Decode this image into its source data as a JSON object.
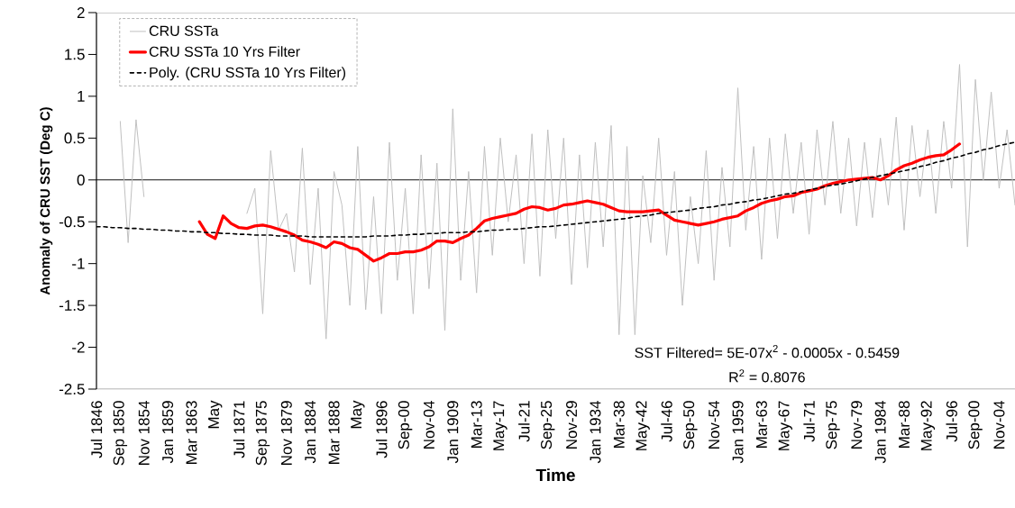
{
  "chart_data": {
    "type": "line",
    "xlabel": "Time",
    "ylabel": "Anomaly of CRU SST (Deg C)",
    "categories": [
      "Jul 1846",
      null,
      null,
      "Sep 1850",
      null,
      null,
      "Nov 1854",
      null,
      null,
      "Jan 1859",
      null,
      null,
      "Mar 1863",
      null,
      null,
      "May",
      null,
      null,
      "Jul 1871",
      null,
      null,
      "Sep 1875",
      null,
      null,
      "Nov 1879",
      null,
      null,
      "Jan 1884",
      null,
      null,
      "Mar 1888",
      null,
      null,
      "May",
      null,
      null,
      "Jul 1896",
      null,
      null,
      "Sep-00",
      null,
      null,
      "Nov-04",
      null,
      null,
      "Jan 1909",
      null,
      null,
      "Mar-13",
      null,
      null,
      "May-17",
      null,
      null,
      "Jul-21",
      null,
      null,
      "Sep-25",
      null,
      null,
      "Nov-29",
      null,
      null,
      "Jan 1934",
      null,
      null,
      "Mar-38",
      null,
      null,
      "May-42",
      null,
      null,
      "Jul-46",
      null,
      null,
      "Sep-50",
      null,
      null,
      "Nov-54",
      null,
      null,
      "Jan 1959",
      null,
      null,
      "Mar-63",
      null,
      null,
      "May-67",
      null,
      null,
      "Jul-71",
      null,
      null,
      "Sep-75",
      null,
      null,
      "Nov-79",
      null,
      null,
      "Jan 1984",
      null,
      null,
      "Mar-88",
      null,
      null,
      "May-92",
      null,
      null,
      "Jul-96",
      null,
      null,
      "Sep-00",
      null,
      null,
      "Nov-04",
      null,
      null
    ],
    "series": [
      {
        "name": "CRU SSTa",
        "color": "#c0c0c0",
        "line_style": "solid",
        "values": [
          null,
          null,
          null,
          0.7,
          -0.75,
          0.72,
          -0.2,
          null,
          null,
          null,
          null,
          null,
          null,
          null,
          null,
          null,
          null,
          null,
          null,
          -0.4,
          -0.1,
          -1.6,
          0.35,
          -0.6,
          -0.4,
          -1.1,
          0.38,
          -1.25,
          -0.1,
          -1.9,
          0.1,
          -0.3,
          -1.5,
          0.4,
          -1.55,
          -0.2,
          -1.6,
          0.45,
          -1.2,
          -0.1,
          -1.6,
          0.3,
          -1.3,
          0.2,
          -1.8,
          0.85,
          -1.2,
          0.1,
          -1.35,
          0.4,
          -0.9,
          0.5,
          -0.5,
          0.3,
          -1.0,
          0.55,
          -1.15,
          0.6,
          -0.7,
          0.5,
          -1.25,
          0.3,
          -1.05,
          0.45,
          -0.8,
          0.65,
          -1.85,
          0.4,
          -1.85,
          0.05,
          -0.75,
          0.5,
          -0.9,
          0.1,
          -1.5,
          -0.2,
          -1.0,
          0.35,
          -1.2,
          0.15,
          -0.8,
          1.1,
          -0.6,
          0.4,
          -0.95,
          0.5,
          -0.7,
          0.55,
          -0.4,
          0.45,
          -0.65,
          0.6,
          -0.3,
          0.7,
          -0.4,
          0.5,
          -0.55,
          0.45,
          -0.45,
          0.5,
          -0.3,
          0.75,
          -0.6,
          0.65,
          -0.2,
          0.6,
          -0.4,
          0.7,
          -0.1,
          1.38,
          -0.8,
          1.2,
          0.0,
          1.05,
          -0.1,
          0.6,
          -0.3
        ]
      },
      {
        "name": "CRU SSTa 10 Yrs Filter",
        "color": "#ff0000",
        "line_style": "solid",
        "values": [
          null,
          null,
          null,
          null,
          null,
          null,
          null,
          null,
          null,
          null,
          null,
          null,
          null,
          -0.5,
          -0.65,
          -0.7,
          -0.43,
          -0.52,
          -0.57,
          -0.58,
          -0.55,
          -0.54,
          -0.56,
          -0.59,
          -0.62,
          -0.66,
          -0.72,
          -0.74,
          -0.77,
          -0.81,
          -0.74,
          -0.76,
          -0.81,
          -0.83,
          -0.9,
          -0.97,
          -0.93,
          -0.88,
          -0.88,
          -0.86,
          -0.86,
          -0.84,
          -0.8,
          -0.73,
          -0.73,
          -0.75,
          -0.7,
          -0.66,
          -0.58,
          -0.49,
          -0.46,
          -0.44,
          -0.42,
          -0.4,
          -0.35,
          -0.32,
          -0.33,
          -0.36,
          -0.34,
          -0.3,
          -0.29,
          -0.27,
          -0.25,
          -0.27,
          -0.29,
          -0.33,
          -0.37,
          -0.38,
          -0.38,
          -0.38,
          -0.37,
          -0.36,
          -0.42,
          -0.48,
          -0.5,
          -0.52,
          -0.54,
          -0.52,
          -0.5,
          -0.47,
          -0.45,
          -0.43,
          -0.37,
          -0.33,
          -0.28,
          -0.25,
          -0.23,
          -0.2,
          -0.19,
          -0.15,
          -0.13,
          -0.11,
          -0.07,
          -0.04,
          -0.02,
          0.0,
          0.01,
          0.02,
          0.03,
          0.0,
          0.05,
          0.12,
          0.17,
          0.2,
          0.24,
          0.27,
          0.29,
          0.3,
          0.36,
          0.43,
          null,
          null,
          null,
          null,
          null,
          null,
          null
        ]
      },
      {
        "name": "Poly. (CRU SSTa 10 Yrs Filter)",
        "color": "#000000",
        "line_style": "dashed",
        "values": [
          -0.56,
          -0.56,
          -0.57,
          -0.57,
          -0.58,
          -0.58,
          -0.59,
          -0.59,
          -0.6,
          -0.6,
          -0.61,
          -0.61,
          -0.62,
          -0.62,
          -0.63,
          -0.63,
          -0.64,
          -0.64,
          -0.65,
          -0.65,
          -0.66,
          -0.66,
          -0.66,
          -0.67,
          -0.67,
          -0.67,
          -0.67,
          -0.68,
          -0.68,
          -0.68,
          -0.68,
          -0.68,
          -0.68,
          -0.68,
          -0.68,
          -0.67,
          -0.67,
          -0.67,
          -0.66,
          -0.66,
          -0.65,
          -0.65,
          -0.64,
          -0.64,
          -0.63,
          -0.63,
          -0.63,
          -0.62,
          -0.62,
          -0.61,
          -0.6,
          -0.6,
          -0.59,
          -0.59,
          -0.58,
          -0.57,
          -0.56,
          -0.56,
          -0.55,
          -0.54,
          -0.53,
          -0.52,
          -0.51,
          -0.5,
          -0.49,
          -0.48,
          -0.47,
          -0.46,
          -0.44,
          -0.43,
          -0.42,
          -0.4,
          -0.39,
          -0.38,
          -0.37,
          -0.36,
          -0.34,
          -0.33,
          -0.32,
          -0.3,
          -0.29,
          -0.27,
          -0.26,
          -0.24,
          -0.23,
          -0.21,
          -0.19,
          -0.17,
          -0.16,
          -0.14,
          -0.12,
          -0.1,
          -0.08,
          -0.06,
          -0.05,
          -0.03,
          -0.01,
          0.01,
          0.03,
          0.05,
          0.07,
          0.09,
          0.11,
          0.13,
          0.16,
          0.18,
          0.21,
          0.23,
          0.26,
          0.28,
          0.31,
          0.33,
          0.36,
          0.38,
          0.41,
          0.43,
          0.45
        ]
      }
    ],
    "ylim": [
      -2.5,
      2
    ],
    "yticks": [
      -2.5,
      -2,
      -1.5,
      -1,
      -0.5,
      0,
      0.5,
      1,
      1.5,
      2
    ],
    "ref_lines": [
      {
        "axis": "y",
        "value": 0,
        "color": "#000000"
      }
    ],
    "legend": "top left",
    "marker": "none",
    "annotations": [
      "SST Filtered= 5E-07x$^{2}$ - 0.0005x - 0.5459",
      "R$^{2}$ = 0.8076"
    ]
  }
}
